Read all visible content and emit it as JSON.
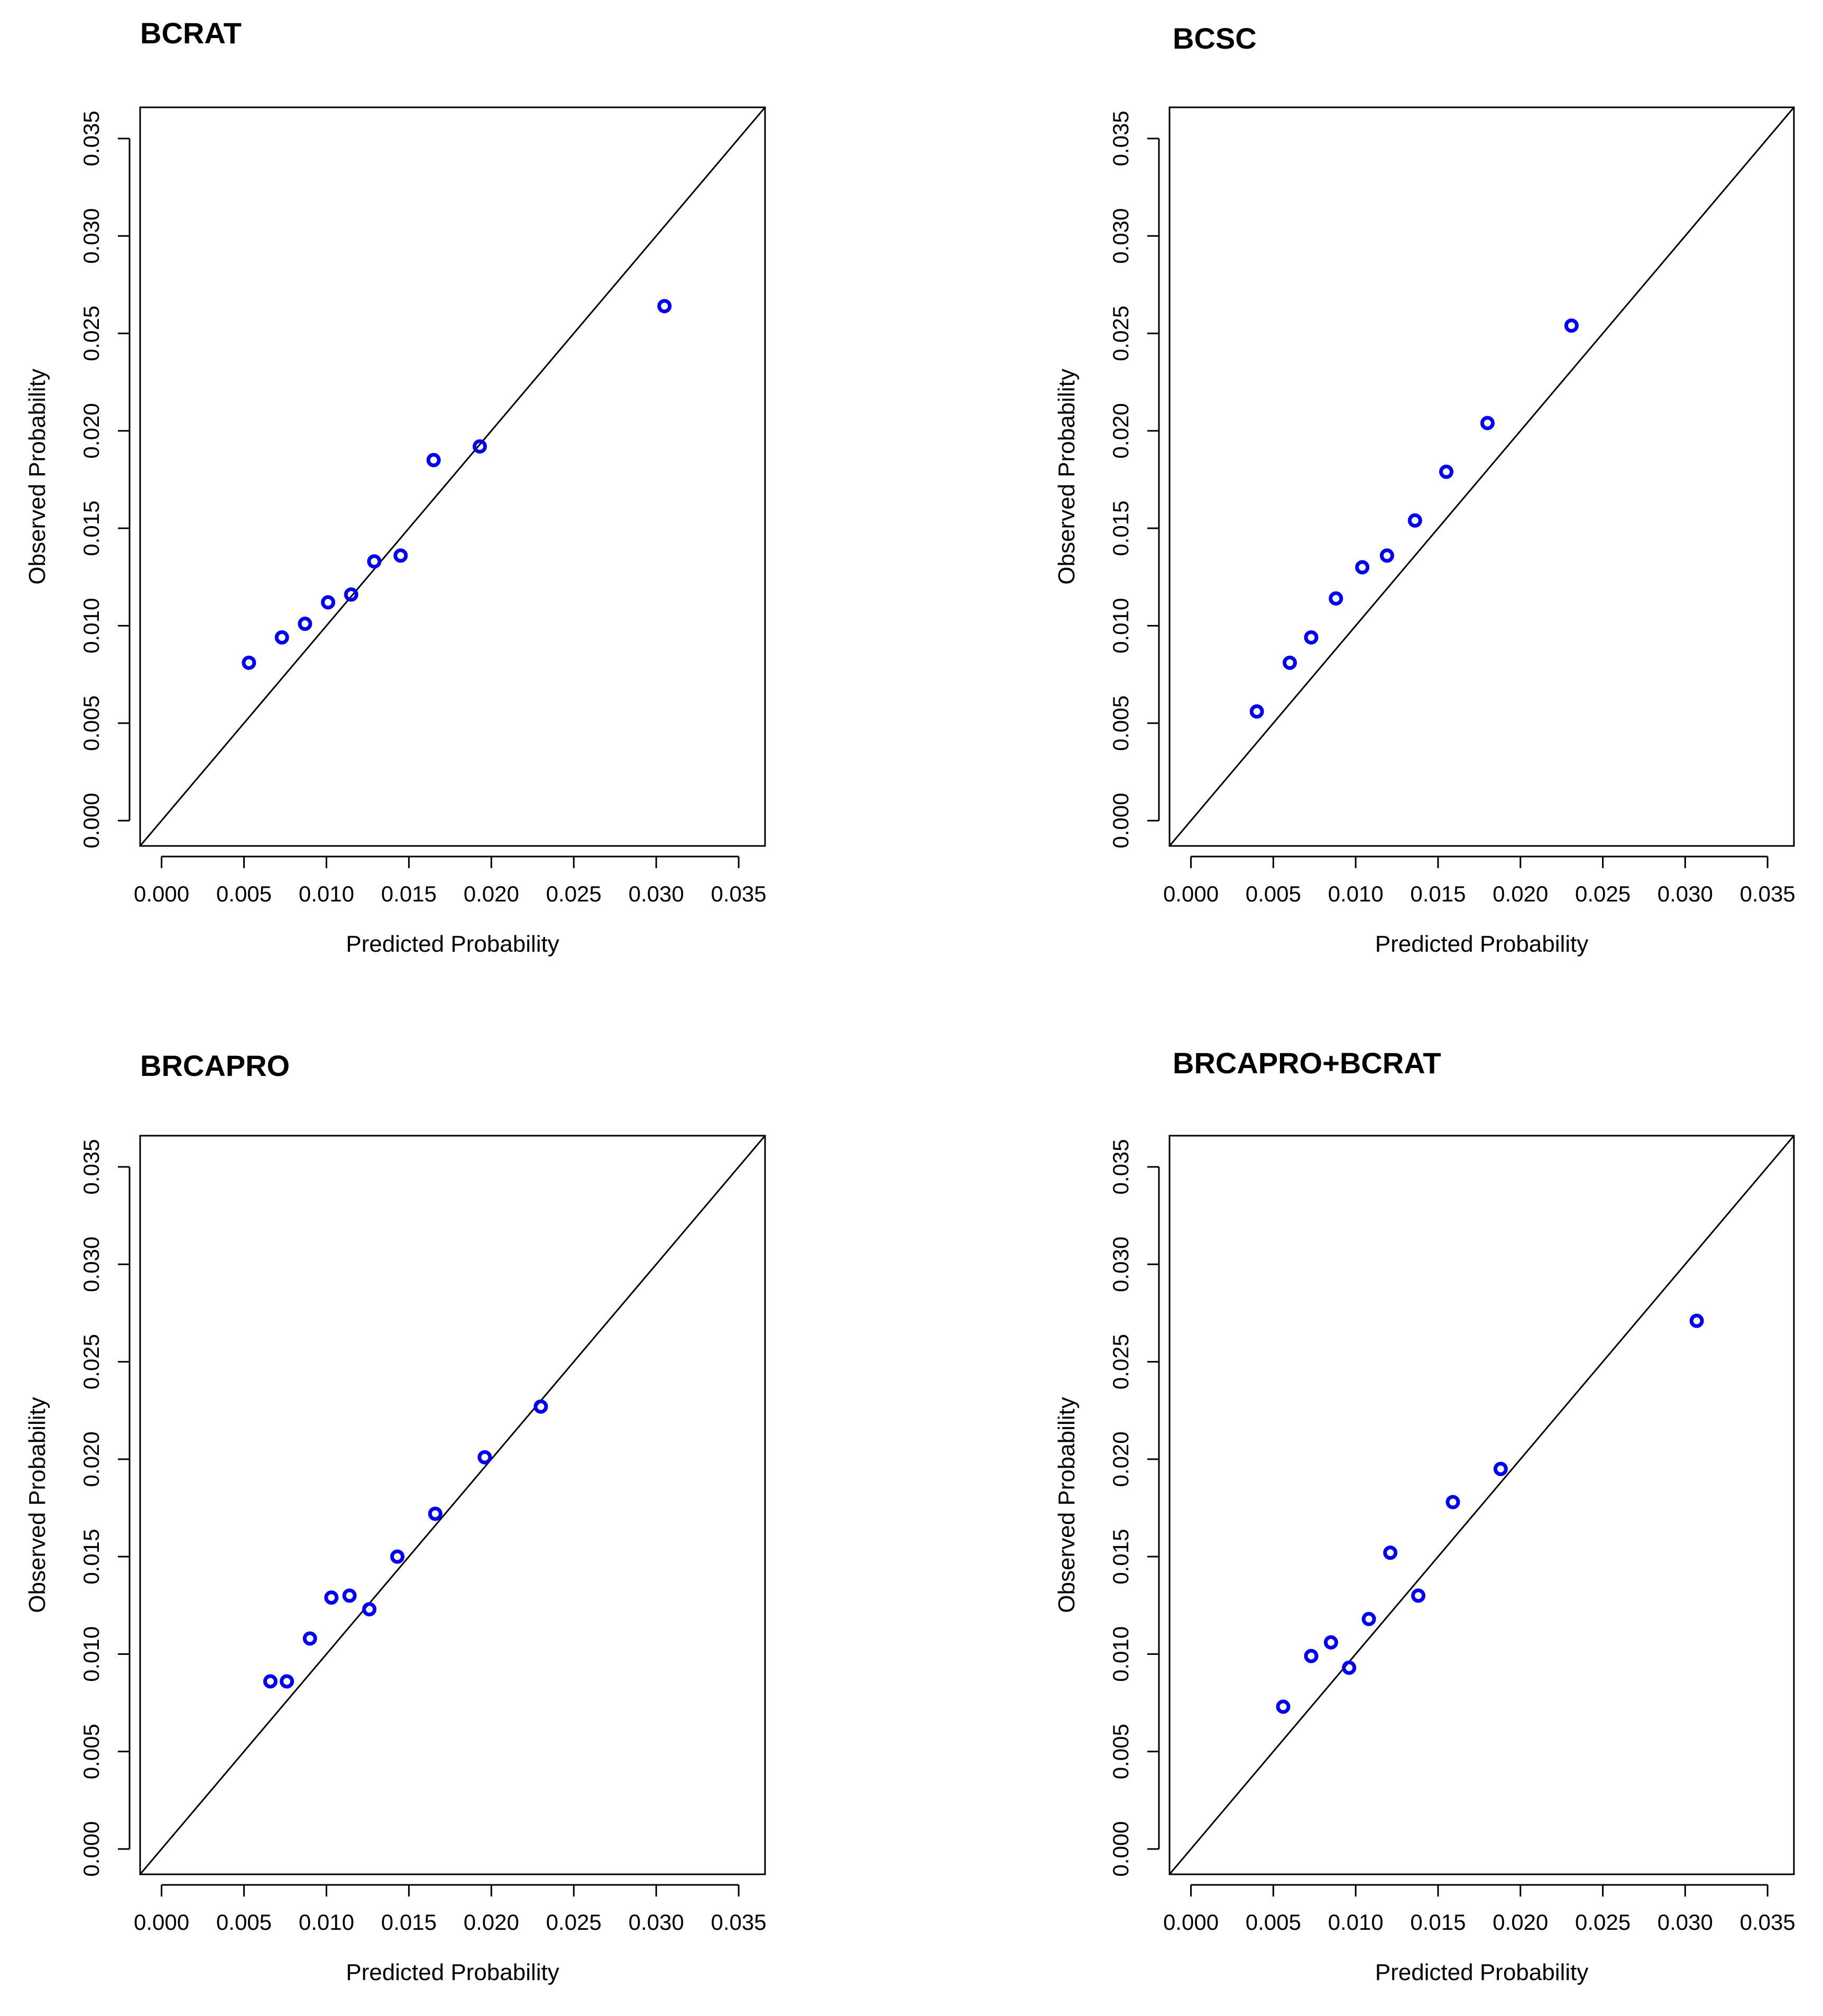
{
  "chart_data": [
    {
      "type": "scatter",
      "title": "BCRAT",
      "xlabel": "Predicted Probability",
      "ylabel": "Observed Probability",
      "xlim": [
        -0.0013,
        0.0366
      ],
      "ylim": [
        -0.0013,
        0.0366
      ],
      "xticks": [
        "0.000",
        "0.005",
        "0.010",
        "0.015",
        "0.020",
        "0.025",
        "0.030",
        "0.035"
      ],
      "yticks": [
        "0.000",
        "0.005",
        "0.010",
        "0.015",
        "0.020",
        "0.025",
        "0.030",
        "0.035"
      ],
      "grid": false,
      "reference_line": "y = x",
      "series": [
        {
          "color": "#0000ee",
          "marker": "open-circle",
          "points": [
            [
              0.0053,
              0.0081
            ],
            [
              0.0073,
              0.0094
            ],
            [
              0.0087,
              0.0101
            ],
            [
              0.0101,
              0.0112
            ],
            [
              0.0115,
              0.0116
            ],
            [
              0.0129,
              0.0133
            ],
            [
              0.0145,
              0.0136
            ],
            [
              0.0165,
              0.0185
            ],
            [
              0.0193,
              0.0192
            ],
            [
              0.0305,
              0.0264
            ]
          ]
        }
      ]
    },
    {
      "type": "scatter",
      "title": "BCSC",
      "xlabel": "Predicted Probability",
      "ylabel": "Observed Probability",
      "xlim": [
        -0.0013,
        0.0366
      ],
      "ylim": [
        -0.0013,
        0.0366
      ],
      "xticks": [
        "0.000",
        "0.005",
        "0.010",
        "0.015",
        "0.020",
        "0.025",
        "0.030",
        "0.035"
      ],
      "yticks": [
        "0.000",
        "0.005",
        "0.010",
        "0.015",
        "0.020",
        "0.025",
        "0.030",
        "0.035"
      ],
      "grid": false,
      "reference_line": "y = x",
      "series": [
        {
          "color": "#0000ee",
          "marker": "open-circle",
          "points": [
            [
              0.004,
              0.0056
            ],
            [
              0.006,
              0.0081
            ],
            [
              0.0073,
              0.0094
            ],
            [
              0.0088,
              0.0114
            ],
            [
              0.0104,
              0.013
            ],
            [
              0.0119,
              0.0136
            ],
            [
              0.0136,
              0.0154
            ],
            [
              0.0155,
              0.0179
            ],
            [
              0.018,
              0.0204
            ],
            [
              0.0231,
              0.0254
            ]
          ]
        }
      ]
    },
    {
      "type": "scatter",
      "title": "BRCAPRO",
      "xlabel": "Predicted Probability",
      "ylabel": "Observed Probability",
      "xlim": [
        -0.0013,
        0.0366
      ],
      "ylim": [
        -0.0013,
        0.0366
      ],
      "xticks": [
        "0.000",
        "0.005",
        "0.010",
        "0.015",
        "0.020",
        "0.025",
        "0.030",
        "0.035"
      ],
      "yticks": [
        "0.000",
        "0.005",
        "0.010",
        "0.015",
        "0.020",
        "0.025",
        "0.030",
        "0.035"
      ],
      "grid": false,
      "reference_line": "y = x",
      "series": [
        {
          "color": "#0000ee",
          "marker": "open-circle",
          "points": [
            [
              0.0066,
              0.0086
            ],
            [
              0.0076,
              0.0086
            ],
            [
              0.009,
              0.0108
            ],
            [
              0.0103,
              0.0129
            ],
            [
              0.0114,
              0.013
            ],
            [
              0.0126,
              0.0123
            ],
            [
              0.0143,
              0.015
            ],
            [
              0.0166,
              0.0172
            ],
            [
              0.0196,
              0.0201
            ],
            [
              0.023,
              0.0227
            ]
          ]
        }
      ]
    },
    {
      "type": "scatter",
      "title": "BRCAPRO+BCRAT",
      "xlabel": "Predicted Probability",
      "ylabel": "Observed Probability",
      "xlim": [
        -0.0013,
        0.0366
      ],
      "ylim": [
        -0.0013,
        0.0366
      ],
      "xticks": [
        "0.000",
        "0.005",
        "0.010",
        "0.015",
        "0.020",
        "0.025",
        "0.030",
        "0.035"
      ],
      "yticks": [
        "0.000",
        "0.005",
        "0.010",
        "0.015",
        "0.020",
        "0.025",
        "0.030",
        "0.035"
      ],
      "grid": false,
      "reference_line": "y = x",
      "series": [
        {
          "color": "#0000ee",
          "marker": "open-circle",
          "points": [
            [
              0.0056,
              0.0073
            ],
            [
              0.0073,
              0.0099
            ],
            [
              0.0085,
              0.0106
            ],
            [
              0.0096,
              0.0093
            ],
            [
              0.0108,
              0.0118
            ],
            [
              0.0121,
              0.0152
            ],
            [
              0.0138,
              0.013
            ],
            [
              0.0159,
              0.0178
            ],
            [
              0.0188,
              0.0195
            ],
            [
              0.0307,
              0.0271
            ]
          ]
        }
      ]
    }
  ]
}
